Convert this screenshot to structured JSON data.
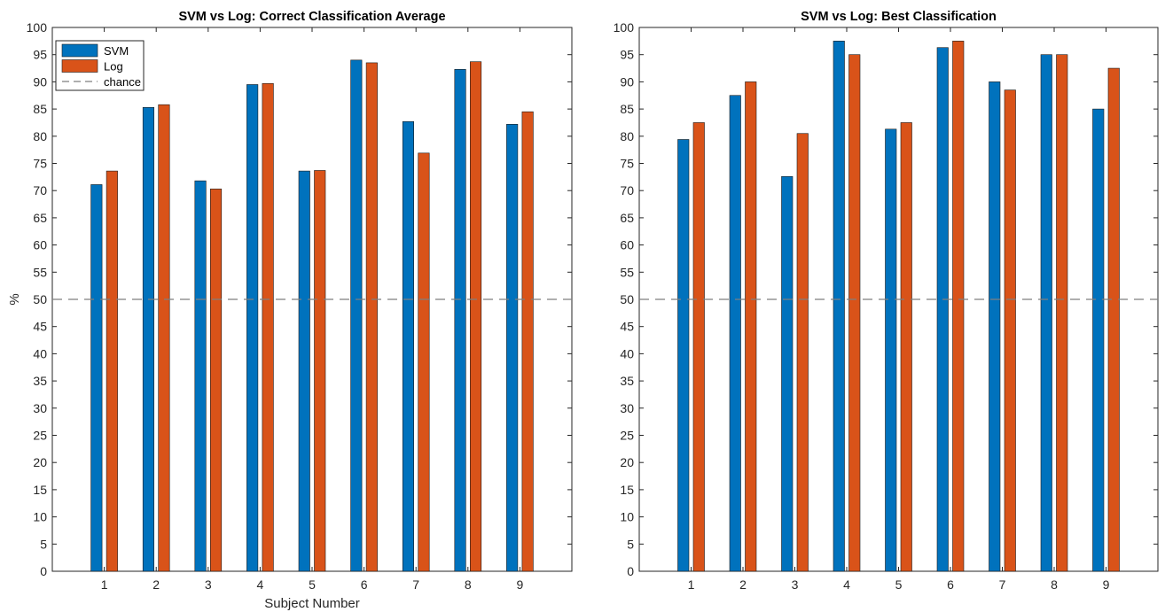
{
  "colors": {
    "svm": "#0072BD",
    "log": "#D95319",
    "chance_line": "#7f7f7f",
    "axes": "#262626"
  },
  "chart_data": [
    {
      "type": "bar",
      "title": "SVM vs Log: Correct Classification Average",
      "xlabel": "Subject Number",
      "ylabel": "%",
      "categories": [
        "1",
        "2",
        "3",
        "4",
        "5",
        "6",
        "7",
        "8",
        "9"
      ],
      "ylim": [
        0,
        100
      ],
      "yticks": [
        "0",
        "5",
        "10",
        "15",
        "20",
        "25",
        "30",
        "35",
        "40",
        "45",
        "50",
        "55",
        "60",
        "65",
        "70",
        "75",
        "80",
        "85",
        "90",
        "95",
        "100"
      ],
      "grid": false,
      "legend": {
        "placement": "top-left",
        "entries": [
          "SVM",
          "Log",
          "chance"
        ]
      },
      "series": [
        {
          "name": "SVM",
          "values": [
            71.1,
            85.3,
            71.8,
            89.5,
            73.6,
            94.0,
            82.7,
            92.3,
            82.2
          ]
        },
        {
          "name": "Log",
          "values": [
            73.6,
            85.8,
            70.3,
            89.7,
            73.7,
            93.5,
            76.9,
            93.7,
            84.5
          ]
        }
      ],
      "reference_line": {
        "name": "chance",
        "value": 50,
        "style": "dashed"
      }
    },
    {
      "type": "bar",
      "title": "SVM vs Log: Best Classification",
      "xlabel": "",
      "ylabel": "",
      "categories": [
        "1",
        "2",
        "3",
        "4",
        "5",
        "6",
        "7",
        "8",
        "9"
      ],
      "ylim": [
        0,
        100
      ],
      "yticks": [
        "0",
        "5",
        "10",
        "15",
        "20",
        "25",
        "30",
        "35",
        "40",
        "45",
        "50",
        "55",
        "60",
        "65",
        "70",
        "75",
        "80",
        "85",
        "90",
        "95",
        "100"
      ],
      "grid": false,
      "legend": null,
      "series": [
        {
          "name": "SVM",
          "values": [
            79.4,
            87.5,
            72.6,
            97.5,
            81.3,
            96.3,
            90.0,
            95.0,
            85.0
          ]
        },
        {
          "name": "Log",
          "values": [
            82.5,
            90.0,
            80.5,
            95.0,
            82.5,
            97.5,
            88.5,
            95.0,
            92.5
          ]
        }
      ],
      "reference_line": {
        "name": "chance",
        "value": 50,
        "style": "dashed"
      }
    }
  ]
}
